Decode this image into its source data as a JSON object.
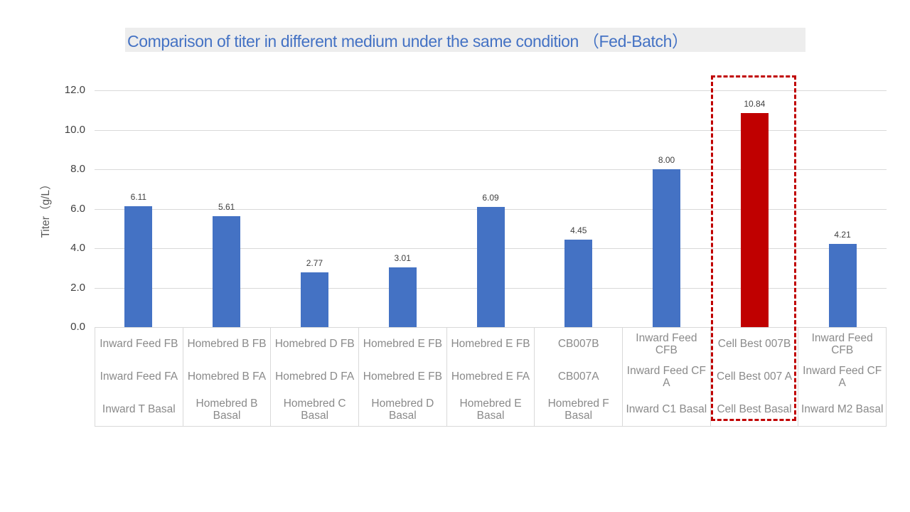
{
  "title": {
    "text": "Comparison of titer in different medium under the same condition （Fed-Batch）",
    "color": "#4472C4",
    "background": "#EDEDED"
  },
  "chart_data": {
    "type": "bar",
    "title": "Comparison of titer in different medium under the same condition （Fed-Batch）",
    "xlabel": "",
    "ylabel": "Titer（g/L）",
    "ylim": [
      0,
      12
    ],
    "ytick_interval": 2,
    "yticks": [
      "0.0",
      "2.0",
      "4.0",
      "6.0",
      "8.0",
      "10.0",
      "12.0"
    ],
    "grid": true,
    "legend": false,
    "bar_color": "#4472C4",
    "highlight_color": "#C00000",
    "highlight_index": 7,
    "categories": [
      [
        "Inward Feed FB",
        "Inward Feed FA",
        "Inward T Basal"
      ],
      [
        "Homebred B FB",
        "Homebred B FA",
        "Homebred B\nBasal"
      ],
      [
        "Homebred D FB",
        "Homebred D FA",
        "Homebred C\nBasal"
      ],
      [
        "Homebred E FB",
        "Homebred E FB",
        "Homebred D\nBasal"
      ],
      [
        "Homebred E FB",
        "Homebred E FA",
        "Homebred E\nBasal"
      ],
      [
        "CB007B",
        "CB007A",
        "Homebred F\nBasal"
      ],
      [
        "Inward Feed\nCFB",
        "Inward Feed CF\nA",
        "Inward C1 Basal"
      ],
      [
        "Cell Best 007B",
        "Cell Best 007 A",
        "Cell Best Basal"
      ],
      [
        "Inward Feed\nCFB",
        "Inward Feed CF\nA",
        "Inward M2 Basal"
      ]
    ],
    "values": [
      6.11,
      5.61,
      2.77,
      3.01,
      6.09,
      4.45,
      8.0,
      10.84,
      4.21
    ],
    "data_labels": [
      "6.11",
      "5.61",
      "2.77",
      "3.01",
      "6.09",
      "4.45",
      "8.00",
      "10.84",
      "4.21"
    ]
  },
  "annotations": {
    "highlight_box": {
      "style": "dashed",
      "color": "#C00000",
      "highlighted_category": "Cell Best 007B",
      "highlighted_value": "10.84"
    }
  }
}
